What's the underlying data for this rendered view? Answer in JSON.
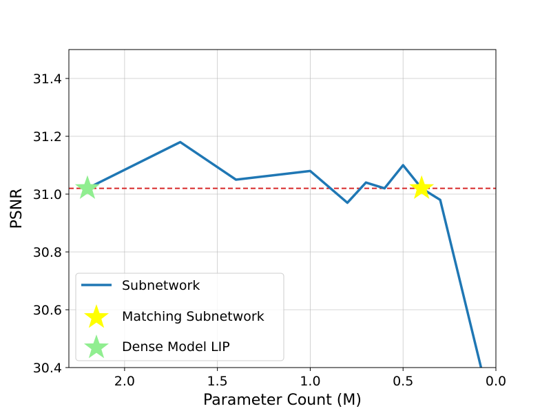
{
  "chart_data": {
    "type": "line",
    "title": "",
    "xlabel": "Parameter Count (M)",
    "ylabel": "PSNR",
    "xlim": [
      2.3,
      0.0
    ],
    "ylim": [
      30.4,
      31.5
    ],
    "x_inverted": true,
    "grid": true,
    "legend_position": "lower-left",
    "xticks": [
      "2.0",
      "1.5",
      "1.0",
      "0.5",
      "0.0"
    ],
    "xtick_values": [
      2.0,
      1.5,
      1.0,
      0.5,
      0.0
    ],
    "yticks": [
      "30.4",
      "30.6",
      "30.8",
      "31.0",
      "31.2",
      "31.4"
    ],
    "ytick_values": [
      30.4,
      30.6,
      30.8,
      31.0,
      31.2,
      31.4
    ],
    "series": [
      {
        "name": "Subnetwork",
        "kind": "line",
        "color": "#1f77b4",
        "x": [
          2.2,
          1.7,
          1.4,
          1.0,
          0.8,
          0.7,
          0.6,
          0.5,
          0.4,
          0.3,
          0.08
        ],
        "y": [
          31.02,
          31.18,
          31.05,
          31.08,
          30.97,
          31.04,
          31.02,
          31.1,
          31.02,
          30.98,
          30.4
        ]
      },
      {
        "name": "Matching Subnetwork",
        "kind": "star",
        "color": "#ffff00",
        "x": [
          0.4
        ],
        "y": [
          31.02
        ]
      },
      {
        "name": "Dense Model LIP",
        "kind": "star",
        "color": "#90ee90",
        "x": [
          2.2
        ],
        "y": [
          31.02
        ]
      }
    ],
    "reference_line": {
      "y": 31.02,
      "color": "#d62728",
      "style": "dashed"
    }
  }
}
